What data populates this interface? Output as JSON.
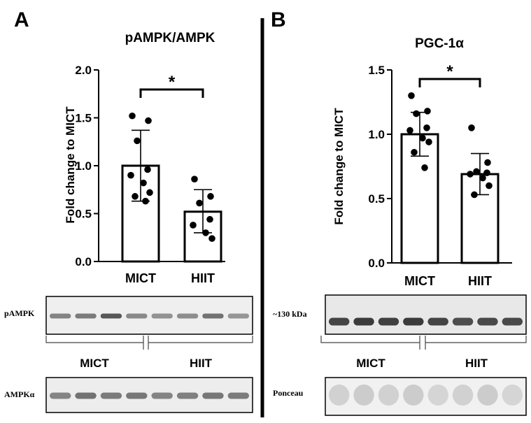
{
  "panels": {
    "a": {
      "letter": "A",
      "title": "pAMPK/AMPK",
      "sig": "*",
      "blot1_label": "pAMPK",
      "blot2_label": "AMPKα",
      "group1": "MICT",
      "group2": "HIIT"
    },
    "b": {
      "letter": "B",
      "title": "PGC-1α",
      "sig": "*",
      "blot1_label": "~130 kDa",
      "blot2_label": "Ponceau",
      "group1": "MICT",
      "group2": "HIIT"
    }
  },
  "chart_data": [
    {
      "type": "bar",
      "title": "pAMPK/AMPK",
      "ylabel": "Fold change to MICT",
      "xlabel": "",
      "ylim": [
        0,
        2.0
      ],
      "yticks": [
        "0.0",
        "0.5",
        "1.0",
        "1.5",
        "2.0"
      ],
      "categories": [
        "MICT",
        "HIIT"
      ],
      "values": [
        1.0,
        0.52
      ],
      "error_upper": [
        1.37,
        0.75
      ],
      "error_lower": [
        0.63,
        0.3
      ],
      "points": [
        [
          1.52,
          1.47,
          1.26,
          0.96,
          0.9,
          0.82,
          0.72,
          0.68,
          0.63
        ],
        [
          0.86,
          0.68,
          0.61,
          0.44,
          0.38,
          0.3,
          0.24
        ]
      ],
      "significance": {
        "between": [
          0,
          1
        ],
        "label": "*"
      },
      "grid": false,
      "legend": "none"
    },
    {
      "type": "bar",
      "title": "PGC-1α",
      "ylabel": "Fold change to MICT",
      "xlabel": "",
      "ylim": [
        0,
        1.5
      ],
      "yticks": [
        "0.0",
        "0.5",
        "1.0",
        "1.5"
      ],
      "categories": [
        "MICT",
        "HIIT"
      ],
      "values": [
        1.0,
        0.69
      ],
      "error_upper": [
        1.17,
        0.85
      ],
      "error_lower": [
        0.83,
        0.53
      ],
      "points": [
        [
          1.3,
          1.18,
          1.16,
          1.05,
          1.03,
          0.97,
          0.94,
          0.86,
          0.74
        ],
        [
          1.05,
          0.78,
          0.71,
          0.7,
          0.69,
          0.66,
          0.6,
          0.53
        ]
      ],
      "significance": {
        "between": [
          0,
          1
        ],
        "label": "*"
      },
      "grid": false,
      "legend": "none"
    }
  ]
}
